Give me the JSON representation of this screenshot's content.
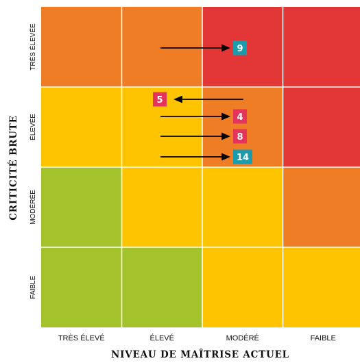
{
  "chart_data": {
    "type": "heatmap",
    "title": "",
    "xlabel": "NIVEAU DE MAÎTRISE ACTUEL",
    "ylabel": "CRITICITÉ BRUTE",
    "x_categories": [
      "TRÈS ÉLEVÉ",
      "ÉLEVÉ",
      "MODÉRÉ",
      "FAIBLE"
    ],
    "y_categories": [
      "TRÈS ÉLEVÉE",
      "ÉLEVÉE",
      "MODÉRÉE",
      "FAIBLE"
    ],
    "levels": {
      "low": "#a3c22c",
      "medium": "#fec400",
      "high": "#ee7d26",
      "critical": "#e33737"
    },
    "cells": [
      [
        "high",
        "high",
        "critical",
        "critical"
      ],
      [
        "medium",
        "medium",
        "high",
        "critical"
      ],
      [
        "low",
        "medium",
        "medium",
        "high"
      ],
      [
        "low",
        "low",
        "medium",
        "medium"
      ]
    ],
    "risks": [
      {
        "id": "9",
        "row": 0,
        "from_col": 1,
        "to_col": 2,
        "color": "#1a9cae"
      },
      {
        "id": "5",
        "row": 1,
        "from_col": 2,
        "to_col": 1,
        "color": "#e4345c"
      },
      {
        "id": "4",
        "row": 1,
        "from_col": 1,
        "to_col": 2,
        "color": "#e4345c"
      },
      {
        "id": "8",
        "row": 1,
        "from_col": 1,
        "to_col": 2,
        "color": "#e4345c"
      },
      {
        "id": "14",
        "row": 1,
        "from_col": 1,
        "to_col": 2,
        "color": "#1a9cae"
      }
    ]
  }
}
